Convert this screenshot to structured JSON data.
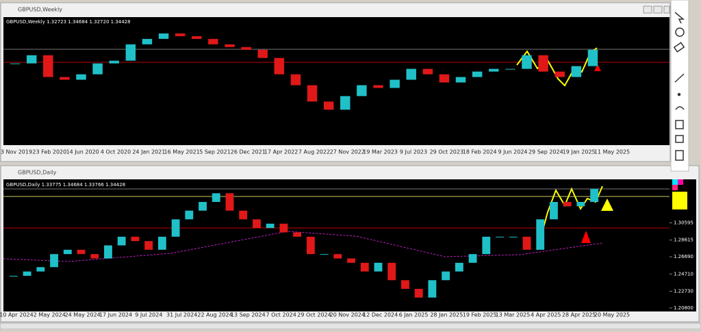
{
  "windows": [
    {
      "title": "GBPUSD,Weekly",
      "info": "GBPUSD,Weekly  1.32723 1.34684 1.32720 1.34428",
      "ylim": [
        0.99,
        1.46
      ],
      "closes": [
        1.29,
        1.32,
        1.24,
        1.23,
        1.25,
        1.29,
        1.3,
        1.36,
        1.38,
        1.4,
        1.39,
        1.38,
        1.36,
        1.35,
        1.34,
        1.31,
        1.25,
        1.21,
        1.15,
        1.12,
        1.17,
        1.21,
        1.2,
        1.23,
        1.27,
        1.25,
        1.22,
        1.24,
        1.26,
        1.27,
        1.27,
        1.32,
        1.26,
        1.24,
        1.28,
        1.34
      ],
      "dates": [
        "3 Nov 2019",
        "23 Feb 2020",
        "14 Jun 2020",
        "4 Oct 2020",
        "24 Jan 2021",
        "16 May 2021",
        "5 Sep 2021",
        "26 Dec 2021",
        "17 Apr 2022",
        "7 Aug 2022",
        "27 Nov 2022",
        "19 Mar 2023",
        "9 Jul 2023",
        "29 Oct 2023",
        "18 Feb 2024",
        "9 Jun 2024",
        "29 Sep 2024",
        "19 Jan 2025",
        "11 May 2025"
      ]
    },
    {
      "title": "GBPUSD,Daily",
      "info": "GBPUSD,Daily  1.33775 1.34684 1.33766 1.34428",
      "ylim": [
        1.204,
        1.356
      ],
      "yticks": [
        1.30595,
        1.28615,
        {
          "value": 1.2669,
          "label": "1.26690"
        },
        {
          "value": 1.2471,
          "label": "1.24710"
        },
        {
          "value": 1.2273,
          "label": "1.22730"
        },
        {
          "value": 1.208,
          "label": "1.20800"
        }
      ],
      "closes": [
        1.245,
        1.25,
        1.255,
        1.27,
        1.275,
        1.27,
        1.265,
        1.28,
        1.29,
        1.285,
        1.275,
        1.29,
        1.31,
        1.32,
        1.33,
        1.34,
        1.32,
        1.31,
        1.3,
        1.305,
        1.295,
        1.29,
        1.27,
        1.27,
        1.265,
        1.26,
        1.25,
        1.26,
        1.24,
        1.23,
        1.22,
        1.24,
        1.25,
        1.26,
        1.27,
        1.29,
        1.29,
        1.29,
        1.275,
        1.31,
        1.33,
        1.325,
        1.33,
        1.345
      ],
      "dates": [
        "10 Apr 2024",
        "2 May 2024",
        "24 May 2024",
        "17 Jun 2024",
        "9 Jul 2024",
        "31 Jul 2024",
        "22 Aug 2024",
        "13 Sep 2024",
        "7 Oct 2024",
        "29 Oct 2024",
        "20 Nov 2024",
        "12 Dec 2024",
        "6 Jan 2025",
        "28 Jan 2025",
        "19 Feb 2025",
        "13 Mar 2025",
        "4 Apr 2025",
        "28 Apr 2025",
        "20 May 2025"
      ]
    }
  ]
}
